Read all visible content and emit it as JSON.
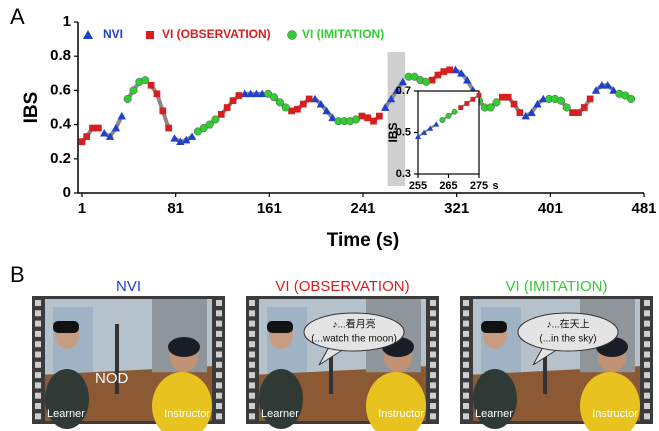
{
  "chart_data": [
    {
      "type": "line",
      "x_label": "Time (s)",
      "y_label": "IBS",
      "xlim": [
        1,
        481
      ],
      "xticks": [
        1,
        81,
        161,
        241,
        321,
        401,
        481
      ],
      "ylim": [
        0,
        1
      ],
      "yticks": [
        0,
        0.2,
        0.4,
        0.6,
        0.8,
        1
      ],
      "legend": "top",
      "highlight_x": [
        262,
        277
      ],
      "x": [
        1,
        5,
        10,
        15,
        20,
        25,
        30,
        35,
        40,
        45,
        50,
        55,
        60,
        65,
        70,
        75,
        80,
        85,
        90,
        95,
        100,
        105,
        110,
        115,
        120,
        125,
        130,
        135,
        140,
        145,
        150,
        155,
        160,
        165,
        170,
        175,
        180,
        185,
        190,
        195,
        200,
        205,
        210,
        215,
        220,
        225,
        230,
        235,
        240,
        245,
        250,
        255,
        260,
        265,
        270,
        275,
        280,
        285,
        290,
        295,
        300,
        305,
        310,
        315,
        320,
        325,
        330,
        335,
        340,
        345,
        350,
        355,
        360,
        365,
        370,
        375,
        380,
        385,
        390,
        395,
        400,
        405,
        410,
        415,
        420,
        425,
        430,
        435,
        440,
        445,
        450,
        455,
        460,
        465,
        470
      ],
      "series": [
        {
          "name": "NVI",
          "color": "#1f3fd0",
          "marker": "triangle",
          "values": [
            null,
            null,
            null,
            null,
            0.35,
            0.33,
            0.38,
            0.45,
            null,
            null,
            null,
            null,
            null,
            null,
            null,
            null,
            0.32,
            0.3,
            0.31,
            0.33,
            null,
            null,
            null,
            null,
            null,
            null,
            null,
            null,
            0.58,
            0.58,
            0.58,
            0.58,
            null,
            null,
            null,
            null,
            null,
            null,
            null,
            null,
            0.55,
            0.52,
            0.48,
            0.44,
            null,
            null,
            null,
            null,
            null,
            null,
            null,
            null,
            0.5,
            0.55,
            0.6,
            0.65,
            null,
            null,
            null,
            null,
            null,
            null,
            null,
            null,
            0.72,
            0.7,
            0.66,
            0.6,
            null,
            null,
            null,
            null,
            null,
            null,
            null,
            null,
            0.45,
            0.47,
            0.52,
            0.55,
            null,
            null,
            null,
            null,
            null,
            null,
            null,
            null,
            0.6,
            0.63,
            0.63,
            0.6,
            null,
            null,
            null
          ]
        },
        {
          "name": "VI (OBSERVATION)",
          "color": "#d62020",
          "marker": "square",
          "values": [
            0.3,
            0.33,
            0.38,
            0.38,
            null,
            null,
            null,
            null,
            null,
            null,
            null,
            null,
            0.63,
            0.58,
            0.48,
            0.38,
            null,
            null,
            null,
            null,
            null,
            null,
            null,
            null,
            0.46,
            0.5,
            0.54,
            0.57,
            null,
            null,
            null,
            null,
            null,
            null,
            null,
            null,
            0.48,
            0.49,
            0.52,
            0.55,
            null,
            null,
            null,
            null,
            null,
            null,
            null,
            null,
            0.45,
            0.44,
            0.42,
            0.45,
            null,
            null,
            null,
            null,
            null,
            null,
            null,
            null,
            0.66,
            0.69,
            0.71,
            0.72,
            null,
            null,
            null,
            null,
            null,
            null,
            null,
            null,
            0.56,
            0.56,
            0.52,
            0.47,
            null,
            null,
            null,
            null,
            null,
            null,
            null,
            null,
            0.47,
            0.47,
            0.5,
            0.55,
            null,
            null,
            null,
            null,
            null,
            null,
            null
          ]
        },
        {
          "name": "VI (IMITATION)",
          "color": "#33cc33",
          "marker": "circle",
          "values": [
            null,
            null,
            null,
            null,
            null,
            null,
            null,
            null,
            0.55,
            0.6,
            0.65,
            0.66,
            null,
            null,
            null,
            null,
            null,
            null,
            null,
            null,
            0.36,
            0.38,
            0.4,
            0.43,
            null,
            null,
            null,
            null,
            null,
            null,
            null,
            null,
            0.58,
            0.56,
            0.53,
            0.5,
            null,
            null,
            null,
            null,
            null,
            null,
            null,
            null,
            0.42,
            0.42,
            0.42,
            0.43,
            null,
            null,
            null,
            null,
            null,
            null,
            null,
            null,
            0.68,
            0.68,
            0.66,
            0.65,
            null,
            null,
            null,
            null,
            null,
            null,
            null,
            null,
            0.54,
            0.5,
            0.5,
            0.53,
            null,
            null,
            null,
            null,
            null,
            null,
            null,
            null,
            0.55,
            0.55,
            0.54,
            0.5,
            null,
            null,
            null,
            null,
            null,
            null,
            null,
            null,
            0.58,
            0.57,
            0.55
          ]
        }
      ]
    },
    {
      "type": "line",
      "x_label": "s",
      "y_label": "IBS",
      "xlim": [
        255,
        275
      ],
      "xticks": [
        255,
        265,
        275
      ],
      "ylim": [
        0.3,
        0.7
      ],
      "yticks": [
        0.3,
        0.5,
        0.7
      ],
      "x": [
        255,
        257,
        259,
        261,
        263,
        265,
        267,
        269,
        271,
        273,
        275
      ],
      "series": [
        {
          "color": "#1f3fd0",
          "marker": "triangle",
          "values": [
            0.48,
            0.5,
            0.52,
            0.54,
            null,
            null,
            null,
            null,
            null,
            null,
            null
          ]
        },
        {
          "color": "#d62020",
          "marker": "square",
          "values": [
            null,
            null,
            null,
            null,
            null,
            null,
            null,
            0.62,
            0.64,
            0.66,
            0.68
          ]
        },
        {
          "color": "#33cc33",
          "marker": "circle",
          "values": [
            null,
            null,
            null,
            null,
            0.56,
            0.58,
            0.6,
            null,
            null,
            null,
            null
          ]
        }
      ]
    }
  ],
  "labels": {
    "a": "A",
    "b": "B"
  },
  "panels": [
    {
      "title": "NVI",
      "color": "#1f3fd0",
      "note": "NOD",
      "learner": "Learner",
      "instructor": "Instructor"
    },
    {
      "title": "VI (OBSERVATION)",
      "color": "#d62020",
      "bubble": [
        "♪...看月亮",
        "(...watch the moon)"
      ],
      "learner": "Learner",
      "instructor": "Instructor"
    },
    {
      "title": "VI (IMITATION)",
      "color": "#33cc33",
      "bubble": [
        "♪...在天上",
        "(...in the sky)"
      ],
      "learner": "Learner",
      "instructor": "Instructor"
    }
  ]
}
